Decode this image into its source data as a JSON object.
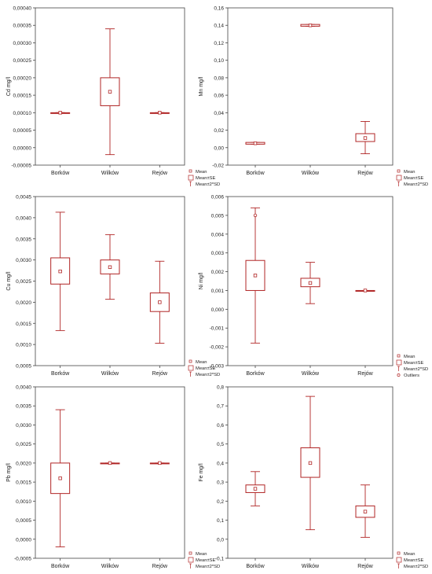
{
  "style": {
    "mark_color": "#b02424",
    "axis_color": "#444444",
    "background": "#ffffff"
  },
  "chart_data": [
    {
      "type": "box",
      "ylabel": "Cd mg/l",
      "categories": [
        "Borków",
        "Wilków",
        "Rejów"
      ],
      "ylim": [
        -5e-05,
        0.0004
      ],
      "yticks": [
        "-0,00005",
        "0,00000",
        "0,00005",
        "0,00010",
        "0,00015",
        "0,00020",
        "0,00025",
        "0,00030",
        "0,00035",
        "0,00040"
      ],
      "series": [
        {
          "category": "Borków",
          "mean": 0.0001,
          "se_low": 0.0001,
          "se_high": 0.0001,
          "sd_low": 0.0001,
          "sd_high": 0.0001
        },
        {
          "category": "Wilków",
          "mean": 0.00016,
          "se_low": 0.00012,
          "se_high": 0.0002,
          "sd_low": -2e-05,
          "sd_high": 0.00034
        },
        {
          "category": "Rejów",
          "mean": 0.0001,
          "se_low": 0.0001,
          "se_high": 0.0001,
          "sd_low": 0.0001,
          "sd_high": 0.0001
        }
      ],
      "outliers": [],
      "legend": [
        "Mean",
        "Mean±SE",
        "Mean±2*SD"
      ]
    },
    {
      "type": "box",
      "ylabel": "Mn mg/l",
      "categories": [
        "Borków",
        "Wilków",
        "Rejów"
      ],
      "ylim": [
        -0.02,
        0.16
      ],
      "yticks": [
        "-0,02",
        "0,00",
        "0,02",
        "0,04",
        "0,06",
        "0,08",
        "0,10",
        "0,12",
        "0,14",
        "0,16"
      ],
      "series": [
        {
          "category": "Borków",
          "mean": 0.005,
          "se_low": 0.004,
          "se_high": 0.006,
          "sd_low": 0.004,
          "sd_high": 0.006
        },
        {
          "category": "Wilków",
          "mean": 0.14,
          "se_low": 0.139,
          "se_high": 0.141,
          "sd_low": 0.139,
          "sd_high": 0.141
        },
        {
          "category": "Rejów",
          "mean": 0.011,
          "se_low": 0.007,
          "se_high": 0.016,
          "sd_low": -0.007,
          "sd_high": 0.03
        }
      ],
      "outliers": [],
      "legend": [
        "Mean",
        "Mean±SE",
        "Mean±2*SD"
      ]
    },
    {
      "type": "box",
      "ylabel": "Cu mg/l",
      "categories": [
        "Borków",
        "Wilków",
        "Rejów"
      ],
      "ylim": [
        0.0005,
        0.0045
      ],
      "yticks": [
        "0,0005",
        "0,0010",
        "0,0015",
        "0,0020",
        "0,0025",
        "0,0030",
        "0,0035",
        "0,0040",
        "0,0045"
      ],
      "series": [
        {
          "category": "Borków",
          "mean": 0.00273,
          "se_low": 0.00243,
          "se_high": 0.00305,
          "sd_low": 0.00133,
          "sd_high": 0.00413
        },
        {
          "category": "Wilków",
          "mean": 0.00283,
          "se_low": 0.00267,
          "se_high": 0.003,
          "sd_low": 0.00207,
          "sd_high": 0.0036
        },
        {
          "category": "Rejów",
          "mean": 0.002,
          "se_low": 0.00178,
          "se_high": 0.00222,
          "sd_low": 0.00103,
          "sd_high": 0.00297
        }
      ],
      "outliers": [],
      "legend": [
        "Mean",
        "Mean±SE",
        "Mean±2*SD"
      ]
    },
    {
      "type": "box",
      "ylabel": "Ni mg/l",
      "categories": [
        "Borków",
        "Wilków",
        "Rejów"
      ],
      "ylim": [
        -0.003,
        0.006
      ],
      "yticks": [
        "-0,003",
        "-0,002",
        "-0,001",
        "0,000",
        "0,001",
        "0,002",
        "0,003",
        "0,004",
        "0,005",
        "0,006"
      ],
      "series": [
        {
          "category": "Borków",
          "mean": 0.0018,
          "se_low": 0.001,
          "se_high": 0.0026,
          "sd_low": -0.0018,
          "sd_high": 0.0054
        },
        {
          "category": "Wilków",
          "mean": 0.0014,
          "se_low": 0.0012,
          "se_high": 0.00165,
          "sd_low": 0.0003,
          "sd_high": 0.0025
        },
        {
          "category": "Rejów",
          "mean": 0.001,
          "se_low": 0.001,
          "se_high": 0.001,
          "sd_low": 0.001,
          "sd_high": 0.001
        }
      ],
      "outliers": [
        {
          "category": "Borków",
          "value": 0.005
        }
      ],
      "legend": [
        "Mean",
        "Mean±SE",
        "Mean±2*SD",
        "Outliers"
      ]
    },
    {
      "type": "box",
      "ylabel": "Pb mg/l",
      "categories": [
        "Borków",
        "Wilków",
        "Rejów"
      ],
      "ylim": [
        -0.0005,
        0.004
      ],
      "yticks": [
        "-0,0005",
        "0,0000",
        "0,0005",
        "0,0010",
        "0,0015",
        "0,0020",
        "0,0025",
        "0,0030",
        "0,0035",
        "0,0040"
      ],
      "series": [
        {
          "category": "Borków",
          "mean": 0.0016,
          "se_low": 0.0012,
          "se_high": 0.002,
          "sd_low": -0.0002,
          "sd_high": 0.0034
        },
        {
          "category": "Wilków",
          "mean": 0.002,
          "se_low": 0.002,
          "se_high": 0.002,
          "sd_low": 0.002,
          "sd_high": 0.002
        },
        {
          "category": "Rejów",
          "mean": 0.002,
          "se_low": 0.002,
          "se_high": 0.002,
          "sd_low": 0.002,
          "sd_high": 0.002
        }
      ],
      "outliers": [],
      "legend": [
        "Mean",
        "Mean±SE",
        "Mean±2*SD"
      ]
    },
    {
      "type": "box",
      "ylabel": "Fe mg/l",
      "categories": [
        "Borków",
        "Wilków",
        "Rejów"
      ],
      "ylim": [
        -0.1,
        0.8
      ],
      "yticks": [
        "-0,1",
        "0,0",
        "0,1",
        "0,2",
        "0,3",
        "0,4",
        "0,5",
        "0,6",
        "0,7",
        "0,8"
      ],
      "series": [
        {
          "category": "Borków",
          "mean": 0.265,
          "se_low": 0.245,
          "se_high": 0.285,
          "sd_low": 0.175,
          "sd_high": 0.355
        },
        {
          "category": "Wilków",
          "mean": 0.4,
          "se_low": 0.325,
          "se_high": 0.48,
          "sd_low": 0.05,
          "sd_high": 0.75
        },
        {
          "category": "Rejów",
          "mean": 0.145,
          "se_low": 0.115,
          "se_high": 0.175,
          "sd_low": 0.01,
          "sd_high": 0.285
        }
      ],
      "outliers": [],
      "legend": [
        "Mean",
        "Mean±SE",
        "Mean±2*SD"
      ]
    }
  ]
}
